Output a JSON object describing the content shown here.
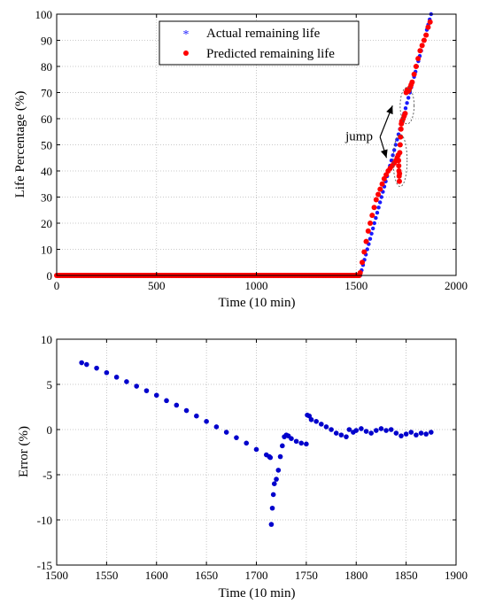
{
  "chart_data": [
    {
      "type": "scatter",
      "xlabel": "Time (10 min)",
      "ylabel": "Life Percentage (%)",
      "xlim": [
        0,
        2000
      ],
      "ylim": [
        0,
        100
      ],
      "xticks": [
        0,
        500,
        1000,
        1500,
        2000
      ],
      "yticks": [
        0,
        10,
        20,
        30,
        40,
        50,
        60,
        70,
        80,
        90,
        100
      ],
      "grid": true,
      "legend_position": "top-center",
      "series": [
        {
          "name": "Actual remaining life",
          "color": "#1a1aff",
          "marker": "asterisk",
          "segments": [
            {
              "x_from": 0,
              "x_to": 1520,
              "y_from": 0,
              "y_to": 0
            },
            {
              "x_from": 1520,
              "x_to": 1875,
              "y_from": 0,
              "y_to": 100
            }
          ]
        },
        {
          "name": "Predicted remaining life",
          "color": "#ff0000",
          "marker": "dot",
          "segments": [
            {
              "x_from": 0,
              "x_to": 1515,
              "y_from": 0,
              "y_to": 0
            }
          ],
          "points": [
            [
              1520,
              1
            ],
            [
              1530,
              5
            ],
            [
              1540,
              9
            ],
            [
              1550,
              13
            ],
            [
              1560,
              17
            ],
            [
              1570,
              20
            ],
            [
              1580,
              23
            ],
            [
              1590,
              26
            ],
            [
              1600,
              29
            ],
            [
              1610,
              31
            ],
            [
              1620,
              33
            ],
            [
              1630,
              35
            ],
            [
              1640,
              37
            ],
            [
              1650,
              38.5
            ],
            [
              1660,
              40
            ],
            [
              1670,
              41
            ],
            [
              1680,
              42
            ],
            [
              1690,
              43
            ],
            [
              1700,
              44
            ],
            [
              1705,
              45
            ],
            [
              1710,
              46
            ],
            [
              1712,
              44
            ],
            [
              1713,
              42
            ],
            [
              1714,
              40
            ],
            [
              1715,
              38
            ],
            [
              1716,
              36
            ],
            [
              1717,
              39
            ],
            [
              1718,
              47
            ],
            [
              1720,
              50
            ],
            [
              1722,
              53
            ],
            [
              1724,
              56
            ],
            [
              1726,
              58
            ],
            [
              1728,
              59
            ],
            [
              1730,
              59
            ],
            [
              1735,
              60
            ],
            [
              1740,
              61
            ],
            [
              1745,
              62
            ],
            [
              1750,
              70
            ],
            [
              1755,
              71
            ],
            [
              1760,
              70.5
            ],
            [
              1765,
              71
            ],
            [
              1770,
              72
            ],
            [
              1775,
              73
            ],
            [
              1780,
              74
            ],
            [
              1790,
              77
            ],
            [
              1800,
              80
            ],
            [
              1810,
              83
            ],
            [
              1820,
              86
            ],
            [
              1830,
              88
            ],
            [
              1840,
              90
            ],
            [
              1850,
              92
            ],
            [
              1860,
              95
            ],
            [
              1870,
              97
            ]
          ]
        }
      ],
      "annotations": [
        {
          "text": "jump",
          "x": 1300,
          "y": 53,
          "arrows_to": [
            [
              1735,
              65
            ],
            [
              1705,
              45
            ]
          ]
        }
      ],
      "highlight_ellipses": [
        {
          "cx": 1755,
          "cy": 65,
          "rx": 35,
          "ry": 7
        },
        {
          "cx": 1720,
          "cy": 44,
          "rx": 35,
          "ry": 10
        }
      ]
    },
    {
      "type": "scatter",
      "xlabel": "Time (10 min)",
      "ylabel": "Error (%)",
      "xlim": [
        1500,
        1900
      ],
      "ylim": [
        -15,
        10
      ],
      "xticks": [
        1500,
        1550,
        1600,
        1650,
        1700,
        1750,
        1800,
        1850,
        1900
      ],
      "yticks": [
        -15,
        -10,
        -5,
        0,
        5,
        10
      ],
      "grid": true,
      "series": [
        {
          "color": "#0000cc",
          "marker": "dot",
          "points": [
            [
              1525,
              7.4
            ],
            [
              1530,
              7.2
            ],
            [
              1540,
              6.8
            ],
            [
              1550,
              6.3
            ],
            [
              1560,
              5.8
            ],
            [
              1570,
              5.3
            ],
            [
              1580,
              4.8
            ],
            [
              1590,
              4.3
            ],
            [
              1600,
              3.8
            ],
            [
              1610,
              3.2
            ],
            [
              1620,
              2.7
            ],
            [
              1630,
              2.1
            ],
            [
              1640,
              1.5
            ],
            [
              1650,
              0.9
            ],
            [
              1660,
              0.3
            ],
            [
              1670,
              -0.3
            ],
            [
              1680,
              -0.9
            ],
            [
              1690,
              -1.5
            ],
            [
              1700,
              -2.2
            ],
            [
              1710,
              -2.8
            ],
            [
              1713,
              -3.0
            ],
            [
              1714,
              -3.1
            ],
            [
              1715,
              -10.5
            ],
            [
              1716,
              -8.7
            ],
            [
              1717,
              -7.2
            ],
            [
              1718,
              -6.0
            ],
            [
              1720,
              -5.5
            ],
            [
              1722,
              -4.5
            ],
            [
              1724,
              -3.0
            ],
            [
              1726,
              -1.8
            ],
            [
              1728,
              -0.8
            ],
            [
              1730,
              -0.6
            ],
            [
              1732,
              -0.7
            ],
            [
              1735,
              -1.0
            ],
            [
              1740,
              -1.3
            ],
            [
              1745,
              -1.5
            ],
            [
              1750,
              -1.6
            ],
            [
              1751,
              1.6
            ],
            [
              1753,
              1.5
            ],
            [
              1755,
              1.1
            ],
            [
              1760,
              0.9
            ],
            [
              1765,
              0.6
            ],
            [
              1770,
              0.3
            ],
            [
              1775,
              0.0
            ],
            [
              1780,
              -0.4
            ],
            [
              1785,
              -0.6
            ],
            [
              1790,
              -0.8
            ],
            [
              1793,
              0.0
            ],
            [
              1797,
              -0.3
            ],
            [
              1800,
              -0.1
            ],
            [
              1805,
              0.1
            ],
            [
              1810,
              -0.2
            ],
            [
              1815,
              -0.4
            ],
            [
              1820,
              -0.1
            ],
            [
              1825,
              0.1
            ],
            [
              1830,
              -0.1
            ],
            [
              1835,
              0.0
            ],
            [
              1840,
              -0.4
            ],
            [
              1845,
              -0.7
            ],
            [
              1850,
              -0.5
            ],
            [
              1855,
              -0.3
            ],
            [
              1860,
              -0.6
            ],
            [
              1865,
              -0.4
            ],
            [
              1870,
              -0.5
            ],
            [
              1875,
              -0.3
            ]
          ]
        }
      ]
    }
  ]
}
